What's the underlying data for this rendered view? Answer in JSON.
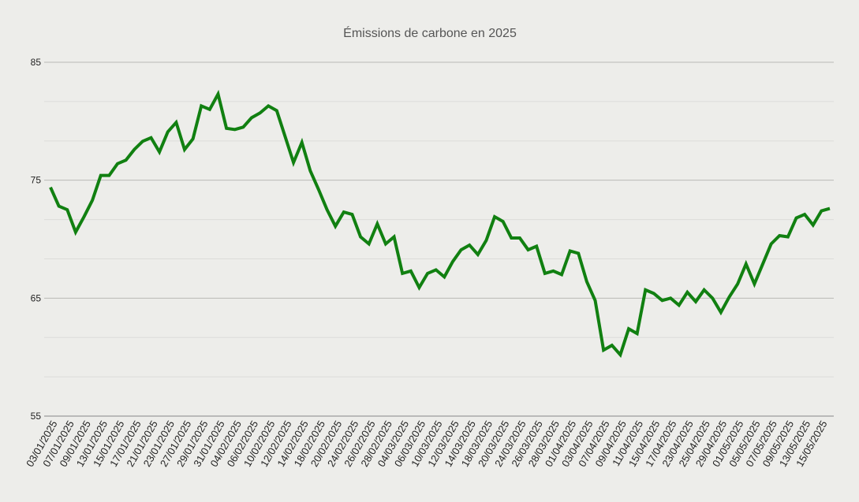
{
  "chart_data": {
    "type": "line",
    "title": "Émissions de carbone en 2025",
    "xlabel": "",
    "ylabel": "",
    "ylim": [
      55,
      85
    ],
    "yticks": [
      55,
      65,
      75,
      85
    ],
    "minor_grid_step": 3.333,
    "grid": true,
    "legend": "none",
    "colors": {
      "background": "#ededea",
      "line": "#118011",
      "major_grid": "#b9b9b6",
      "minor_grid": "#dcdcd9",
      "axis": "#888888"
    },
    "x_tick_labels": [
      "03/01/2025",
      "07/01/2025",
      "09/01/2025",
      "13/01/2025",
      "15/01/2025",
      "17/01/2025",
      "21/01/2025",
      "23/01/2025",
      "27/01/2025",
      "29/01/2025",
      "31/01/2025",
      "04/02/2025",
      "06/02/2025",
      "10/02/2025",
      "12/02/2025",
      "14/02/2025",
      "18/02/2025",
      "20/02/2025",
      "24/02/2025",
      "26/02/2025",
      "28/02/2025",
      "04/03/2025",
      "06/03/2025",
      "10/03/2025",
      "12/03/2025",
      "14/03/2025",
      "18/03/2025",
      "20/03/2025",
      "24/03/2025",
      "26/03/2025",
      "28/03/2025",
      "01/04/2025",
      "03/04/2025",
      "07/04/2025",
      "09/04/2025",
      "11/04/2025",
      "15/04/2025",
      "17/04/2025",
      "23/04/2025",
      "25/04/2025",
      "29/04/2025",
      "01/05/2025",
      "05/05/2025",
      "07/05/2025",
      "09/05/2025",
      "13/05/2025",
      "15/05/2025"
    ],
    "series": [
      {
        "values": [
          74.4,
          72.8,
          72.5,
          70.6,
          71.9,
          73.3,
          75.4,
          75.4,
          76.4,
          76.7,
          77.6,
          78.3,
          78.6,
          77.4,
          79.1,
          79.9,
          77.6,
          78.5,
          81.3,
          81.0,
          82.3,
          79.4,
          79.3,
          79.5,
          80.3,
          80.7,
          81.3,
          80.9,
          78.7,
          76.5,
          78.2,
          75.8,
          74.2,
          72.5,
          71.1,
          72.3,
          72.1,
          70.2,
          69.6,
          71.3,
          69.6,
          70.2,
          67.1,
          67.3,
          65.9,
          67.1,
          67.4,
          66.8,
          68.1,
          69.1,
          69.5,
          68.7,
          69.9,
          71.9,
          71.5,
          70.1,
          70.1,
          69.1,
          69.4,
          67.1,
          67.3,
          67.0,
          69.0,
          68.8,
          66.4,
          64.8,
          60.6,
          61.0,
          60.2,
          62.4,
          62.0,
          65.7,
          65.4,
          64.8,
          65.0,
          64.4,
          65.5,
          64.7,
          65.7,
          65.0,
          63.8,
          65.1,
          66.2,
          67.9,
          66.2,
          67.9,
          69.6,
          70.3,
          70.2,
          71.8,
          72.1,
          71.2,
          72.4,
          72.6
        ]
      }
    ]
  }
}
